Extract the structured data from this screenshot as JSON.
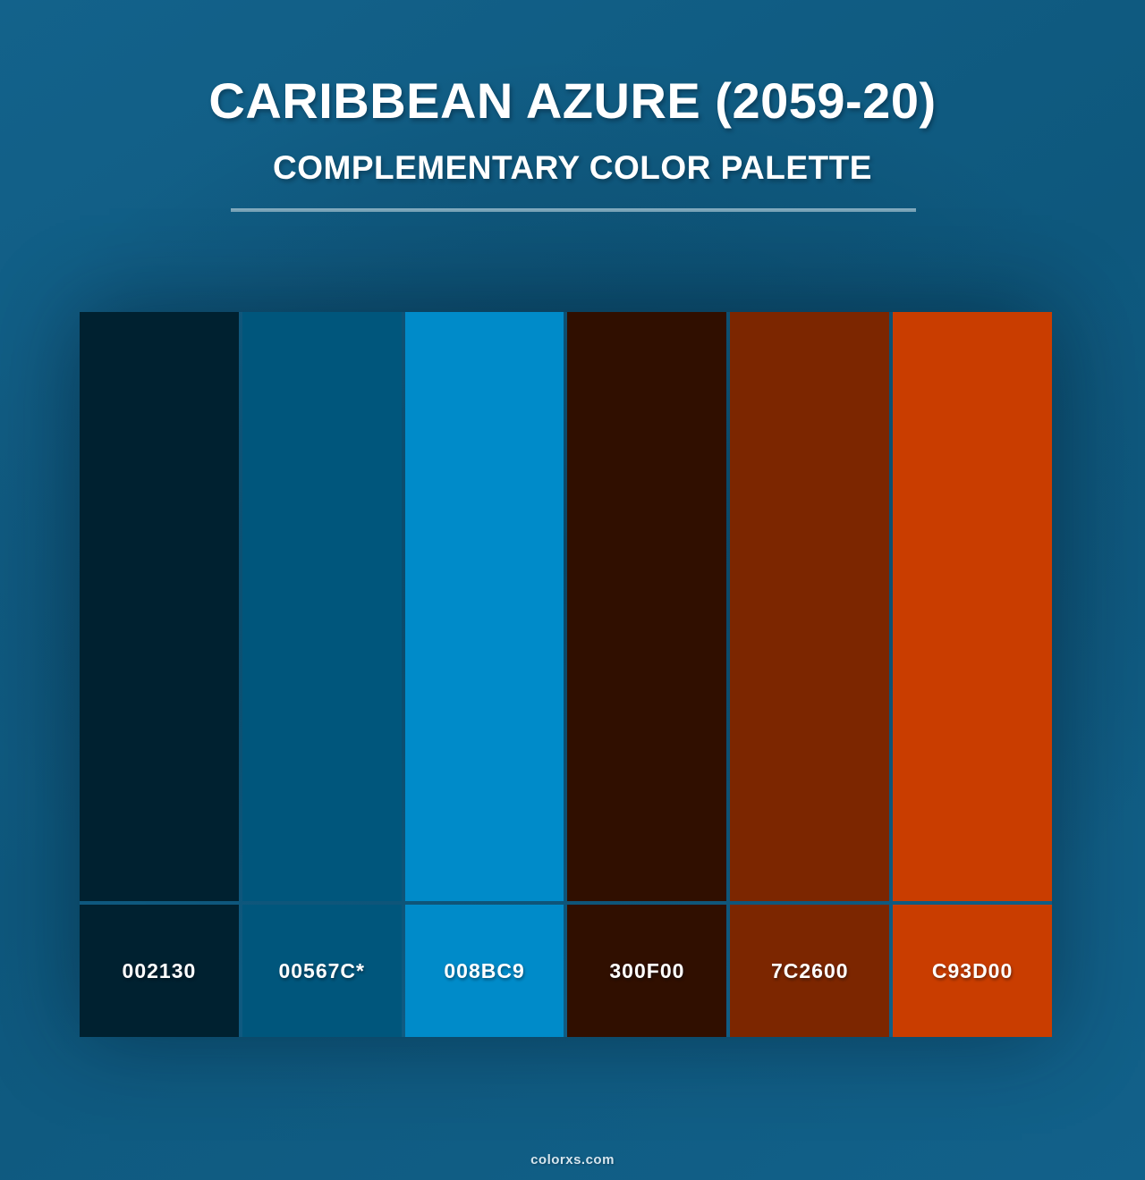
{
  "header": {
    "title": "CARIBBEAN AZURE (2059-20)",
    "subtitle": "COMPLEMENTARY COLOR PALETTE"
  },
  "palette": {
    "swatches": [
      {
        "label": "002130",
        "hex": "#002130"
      },
      {
        "label": "00567C*",
        "hex": "#00567C"
      },
      {
        "label": "008BC9",
        "hex": "#008BC9"
      },
      {
        "label": "300F00",
        "hex": "#300F00"
      },
      {
        "label": "7C2600",
        "hex": "#7C2600"
      },
      {
        "label": "C93D00",
        "hex": "#C93D00"
      }
    ]
  },
  "footer": {
    "site": "colorxs.com"
  },
  "colors": {
    "background": "#0f5c82",
    "separator": "#82abbe",
    "heading_text": "#ffffff"
  }
}
